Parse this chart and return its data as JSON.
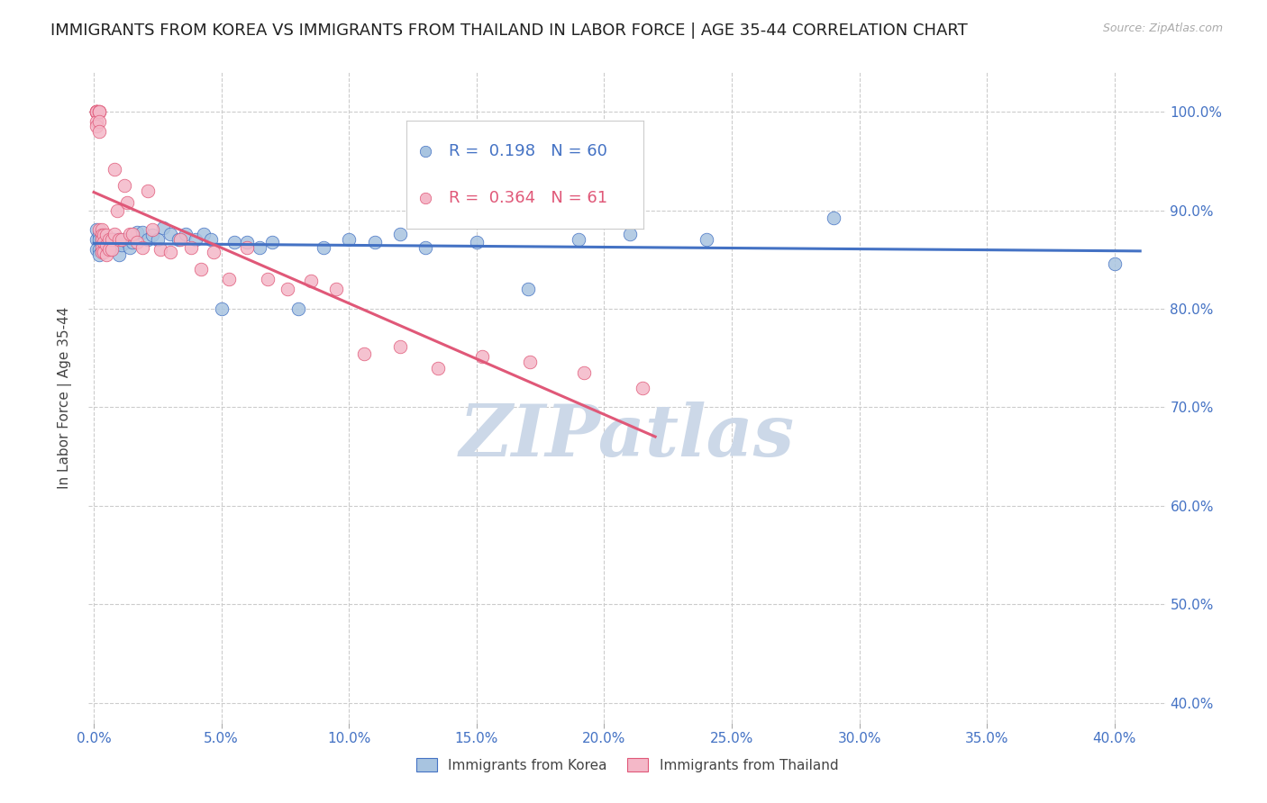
{
  "title": "IMMIGRANTS FROM KOREA VS IMMIGRANTS FROM THAILAND IN LABOR FORCE | AGE 35-44 CORRELATION CHART",
  "source": "Source: ZipAtlas.com",
  "ylabel": "In Labor Force | Age 35-44",
  "xlim": [
    -0.002,
    0.42
  ],
  "ylim": [
    0.38,
    1.04
  ],
  "ytick_vals": [
    0.4,
    0.5,
    0.6,
    0.7,
    0.8,
    0.9,
    1.0
  ],
  "xtick_vals": [
    0.0,
    0.05,
    0.1,
    0.15,
    0.2,
    0.25,
    0.3,
    0.35,
    0.4
  ],
  "korea_R": 0.198,
  "korea_N": 60,
  "thailand_R": 0.364,
  "thailand_N": 61,
  "korea_color": "#a8c4e0",
  "korea_line_color": "#4472c4",
  "thailand_color": "#f4b8c8",
  "thailand_line_color": "#e05878",
  "background_color": "#ffffff",
  "grid_color": "#cccccc",
  "watermark": "ZIPatlas",
  "watermark_color": "#ccd8e8",
  "title_fontsize": 13,
  "tick_label_color": "#4472c4",
  "ylabel_color": "#444444",
  "korea_x": [
    0.001,
    0.001,
    0.001,
    0.002,
    0.002,
    0.002,
    0.002,
    0.003,
    0.003,
    0.003,
    0.003,
    0.004,
    0.004,
    0.004,
    0.005,
    0.005,
    0.005,
    0.006,
    0.006,
    0.007,
    0.007,
    0.008,
    0.009,
    0.01,
    0.01,
    0.011,
    0.012,
    0.013,
    0.014,
    0.015,
    0.017,
    0.019,
    0.021,
    0.023,
    0.025,
    0.027,
    0.03,
    0.033,
    0.036,
    0.04,
    0.043,
    0.046,
    0.05,
    0.055,
    0.06,
    0.065,
    0.07,
    0.08,
    0.09,
    0.1,
    0.11,
    0.12,
    0.13,
    0.15,
    0.17,
    0.19,
    0.21,
    0.24,
    0.29,
    0.4
  ],
  "korea_y": [
    0.87,
    0.88,
    0.86,
    0.875,
    0.87,
    0.86,
    0.855,
    0.87,
    0.865,
    0.875,
    0.86,
    0.87,
    0.865,
    0.86,
    0.87,
    0.865,
    0.86,
    0.87,
    0.865,
    0.87,
    0.86,
    0.87,
    0.865,
    0.87,
    0.855,
    0.865,
    0.87,
    0.868,
    0.862,
    0.868,
    0.878,
    0.878,
    0.87,
    0.875,
    0.87,
    0.882,
    0.876,
    0.87,
    0.876,
    0.87,
    0.876,
    0.87,
    0.8,
    0.868,
    0.868,
    0.862,
    0.868,
    0.8,
    0.862,
    0.87,
    0.868,
    0.876,
    0.862,
    0.868,
    0.82,
    0.87,
    0.876,
    0.87,
    0.892,
    0.846
  ],
  "thailand_x": [
    0.001,
    0.001,
    0.001,
    0.001,
    0.001,
    0.001,
    0.001,
    0.001,
    0.002,
    0.002,
    0.002,
    0.002,
    0.002,
    0.002,
    0.003,
    0.003,
    0.003,
    0.003,
    0.003,
    0.004,
    0.004,
    0.004,
    0.005,
    0.005,
    0.005,
    0.006,
    0.006,
    0.007,
    0.007,
    0.008,
    0.008,
    0.009,
    0.01,
    0.011,
    0.012,
    0.013,
    0.014,
    0.015,
    0.017,
    0.019,
    0.021,
    0.023,
    0.026,
    0.03,
    0.034,
    0.038,
    0.042,
    0.047,
    0.053,
    0.06,
    0.068,
    0.076,
    0.085,
    0.095,
    0.106,
    0.12,
    0.135,
    0.152,
    0.171,
    0.192,
    0.215
  ],
  "thailand_y": [
    1.0,
    1.0,
    1.0,
    1.0,
    1.0,
    1.0,
    0.99,
    0.985,
    1.0,
    1.0,
    1.0,
    0.99,
    0.98,
    0.88,
    0.88,
    0.875,
    0.87,
    0.862,
    0.858,
    0.875,
    0.868,
    0.858,
    0.875,
    0.865,
    0.855,
    0.87,
    0.86,
    0.87,
    0.86,
    0.942,
    0.876,
    0.9,
    0.87,
    0.87,
    0.925,
    0.908,
    0.876,
    0.876,
    0.868,
    0.862,
    0.92,
    0.88,
    0.86,
    0.858,
    0.87,
    0.862,
    0.84,
    0.858,
    0.83,
    0.862,
    0.83,
    0.82,
    0.828,
    0.82,
    0.754,
    0.762,
    0.74,
    0.752,
    0.746,
    0.735,
    0.72
  ]
}
